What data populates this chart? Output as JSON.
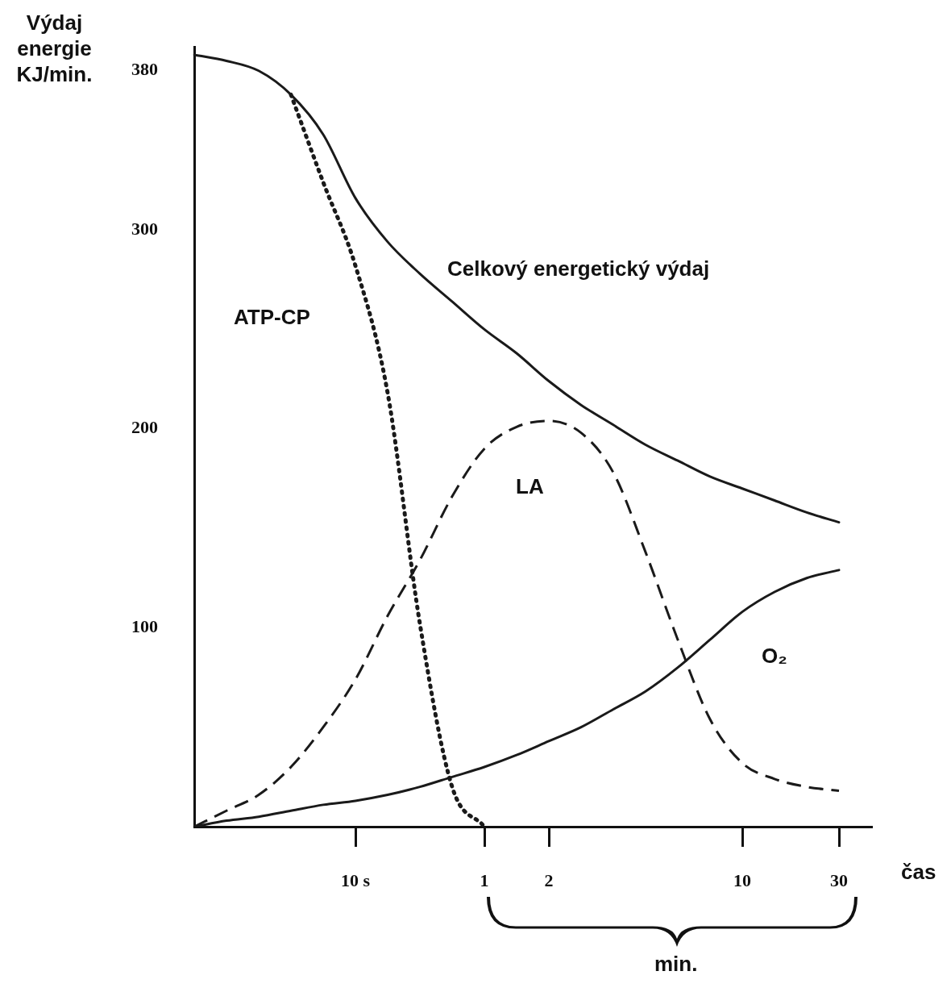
{
  "chart_data": {
    "type": "line",
    "ylabel": "Výdaj energie KJ/min.",
    "xlabel": "čas",
    "annotations": [
      "min."
    ],
    "categories": [
      null,
      null,
      null,
      null,
      null,
      "10 s",
      null,
      null,
      null,
      "1",
      null,
      "2",
      null,
      null,
      null,
      null,
      null,
      "10",
      null,
      null,
      "30",
      null
    ],
    "ylim": [
      0,
      392
    ],
    "yticks": [
      100,
      200,
      300,
      380
    ],
    "grid": false,
    "legend": false,
    "marker": "none",
    "series": [
      {
        "name": "Celkový energetický výdaj",
        "color": "#1a1a1a",
        "line_style": "solid",
        "values": [
          388,
          385,
          380,
          368,
          348,
          316,
          294,
          278,
          264,
          250,
          238,
          224,
          212,
          202,
          192,
          184,
          176,
          170,
          164,
          158,
          153,
          null
        ]
      },
      {
        "name": "ATP-CP",
        "color": "#1a1a1a",
        "line_style": "dotted",
        "values": [
          null,
          null,
          null,
          368,
          324,
          282,
          218,
          102,
          20,
          0,
          null,
          null,
          null,
          null,
          null,
          null,
          null,
          null,
          null,
          null,
          null,
          null
        ]
      },
      {
        "name": "LA",
        "color": "#1a1a1a",
        "line_style": "dashed",
        "values": [
          0,
          8,
          16,
          30,
          50,
          74,
          106,
          134,
          166,
          190,
          201,
          204,
          198,
          178,
          138,
          94,
          54,
          32,
          24,
          20,
          18,
          null
        ]
      },
      {
        "name": "O₂",
        "color": "#1a1a1a",
        "line_style": "solid",
        "values": [
          0,
          3,
          5,
          8,
          11,
          13,
          16,
          20,
          25,
          30,
          36,
          43,
          50,
          59,
          68,
          80,
          94,
          108,
          118,
          125,
          129,
          null
        ]
      }
    ]
  }
}
